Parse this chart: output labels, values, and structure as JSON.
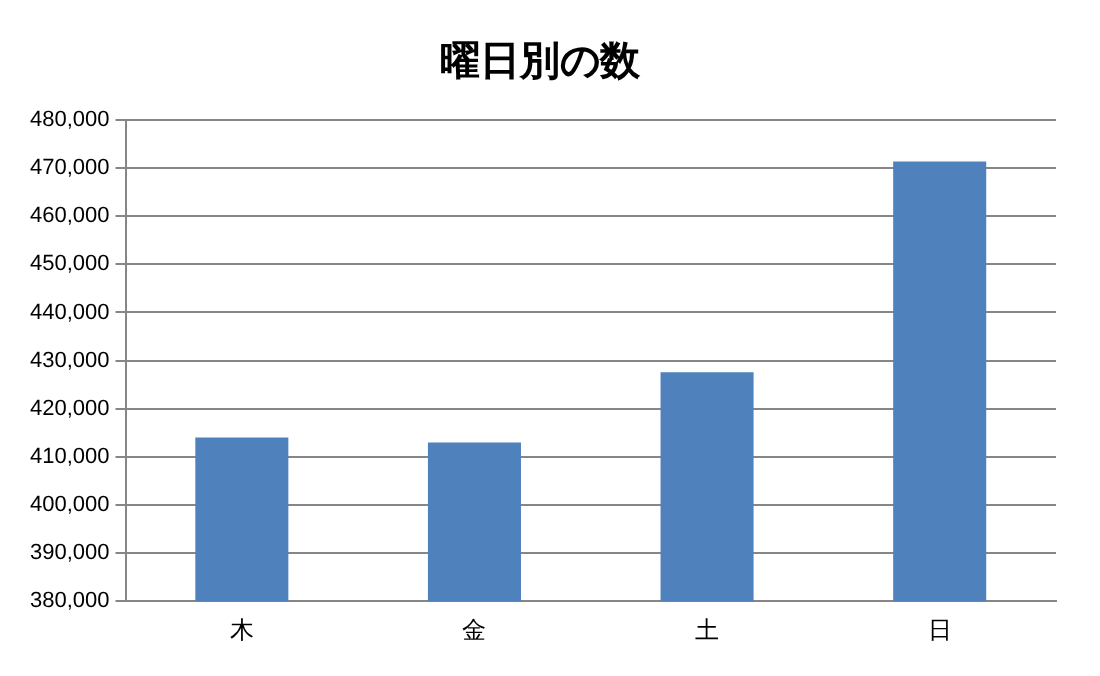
{
  "chart_data": {
    "type": "bar",
    "title": "曜日別の数",
    "categories": [
      "木",
      "金",
      "土",
      "日"
    ],
    "values": [
      414000,
      413000,
      427600,
      471400
    ],
    "color": "#4f81bd",
    "ylim": [
      380000,
      480000
    ],
    "yticks": [
      {
        "value": 380000,
        "label": "380,000"
      },
      {
        "value": 390000,
        "label": "390,000"
      },
      {
        "value": 400000,
        "label": "400,000"
      },
      {
        "value": 410000,
        "label": "410,000"
      },
      {
        "value": 420000,
        "label": "420,000"
      },
      {
        "value": 430000,
        "label": "430,000"
      },
      {
        "value": 440000,
        "label": "440,000"
      },
      {
        "value": 450000,
        "label": "450,000"
      },
      {
        "value": 460000,
        "label": "460,000"
      },
      {
        "value": 470000,
        "label": "470,000"
      },
      {
        "value": 480000,
        "label": "480,000"
      }
    ],
    "grid": "y",
    "legend": false
  }
}
